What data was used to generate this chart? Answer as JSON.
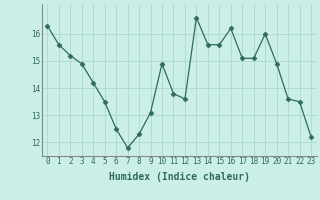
{
  "x": [
    0,
    1,
    2,
    3,
    4,
    5,
    6,
    7,
    8,
    9,
    10,
    11,
    12,
    13,
    14,
    15,
    16,
    17,
    18,
    19,
    20,
    21,
    22,
    23
  ],
  "y": [
    16.3,
    15.6,
    15.2,
    14.9,
    14.2,
    13.5,
    12.5,
    11.8,
    12.3,
    13.1,
    14.9,
    13.8,
    13.6,
    16.6,
    15.6,
    15.6,
    16.2,
    15.1,
    15.1,
    16.0,
    14.9,
    13.6,
    13.5,
    12.2
  ],
  "line_color": "#2d6b5e",
  "marker": "D",
  "bg_color": "#cceee8",
  "grid_color": "#aad8d0",
  "xlabel": "Humidex (Indice chaleur)",
  "ylim": [
    11.5,
    17.1
  ],
  "xlim": [
    -0.5,
    23.5
  ],
  "yticks": [
    12,
    13,
    14,
    15,
    16
  ],
  "xticks": [
    0,
    1,
    2,
    3,
    4,
    5,
    6,
    7,
    8,
    9,
    10,
    11,
    12,
    13,
    14,
    15,
    16,
    17,
    18,
    19,
    20,
    21,
    22,
    23
  ],
  "tick_fontsize": 5.5,
  "xlabel_fontsize": 7,
  "label_color": "#2d6b5e"
}
